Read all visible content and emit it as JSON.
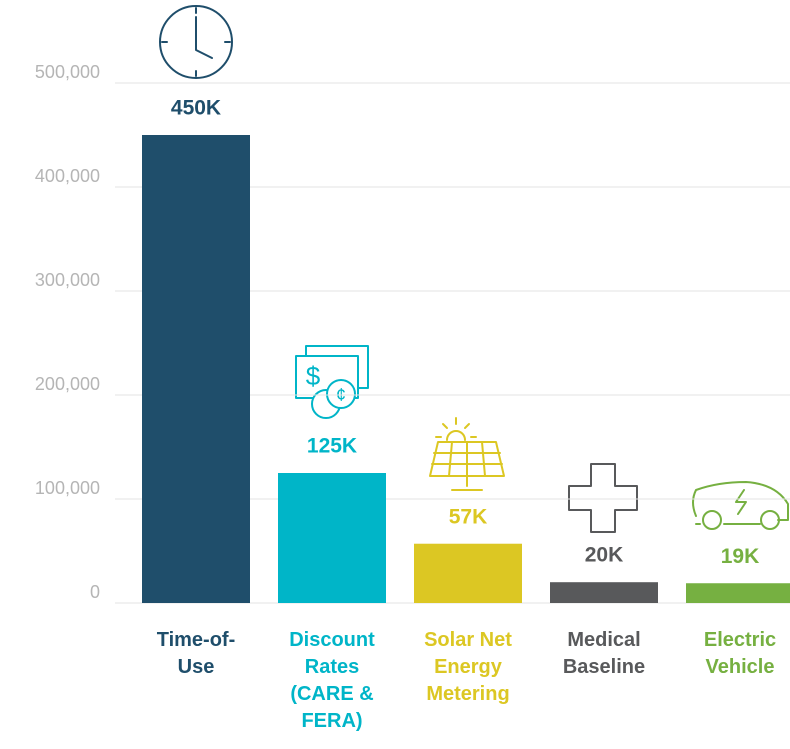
{
  "chart_data": {
    "type": "bar",
    "categories": [
      "Time-of-Use",
      "Discount Rates (CARE & FERA)",
      "Solar Net Energy Metering",
      "Medical Baseline",
      "Electric Vehicle"
    ],
    "values": [
      450000,
      125000,
      57000,
      20000,
      19000
    ],
    "value_labels": [
      "450K",
      "125K",
      "57K",
      "20K",
      "19K"
    ],
    "colors": [
      "#1f4e6b",
      "#00b5c8",
      "#dcc723",
      "#58595b",
      "#76b041"
    ],
    "ylim": [
      0,
      500000
    ],
    "yticks": [
      0,
      {
        "value": 100000,
        "label": "100,000"
      },
      {
        "value": 200000,
        "label": "200,000"
      },
      {
        "value": 300000,
        "label": "300,000"
      },
      {
        "value": 400000,
        "label": "400,000"
      },
      {
        "value": 500000,
        "label": "500,000"
      }
    ],
    "grid": true
  }
}
